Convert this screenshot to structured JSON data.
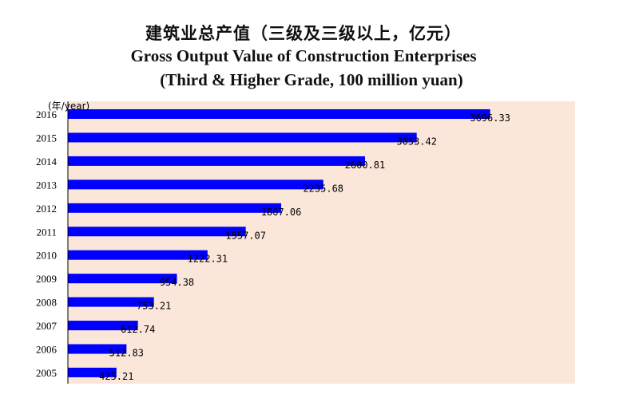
{
  "titles": {
    "cn": "建筑业总产值（三级及三级以上，亿元）",
    "en": "Gross Output Value of Construction Enterprises",
    "unit": "(Third & Higher Grade, 100 million yuan)"
  },
  "colors": {
    "plot_bg": "#fbe7da",
    "bar": "#0000ff",
    "axis": "#000000"
  },
  "chart_data": {
    "type": "bar",
    "orientation": "horizontal",
    "title": "Gross Output Value of Construction Enterprises",
    "ylabel": "(年/year)",
    "categories": [
      "2016",
      "2015",
      "2014",
      "2013",
      "2012",
      "2011",
      "2010",
      "2009",
      "2008",
      "2007",
      "2006",
      "2005"
    ],
    "values": [
      3696.33,
      3053.42,
      2600.81,
      2235.68,
      1867.06,
      1557.07,
      1222.31,
      954.38,
      753.21,
      612.74,
      512.83,
      425.21
    ],
    "value_labels": [
      "3696.33",
      "3053.42",
      "2600.81",
      "2235.68",
      "1867.06",
      "1557.07",
      "1222.31",
      "954.38",
      "753.21",
      "612.74",
      "512.83",
      "425.21"
    ],
    "xlim": [
      0,
      4440
    ],
    "grid": false,
    "legend": "none"
  }
}
